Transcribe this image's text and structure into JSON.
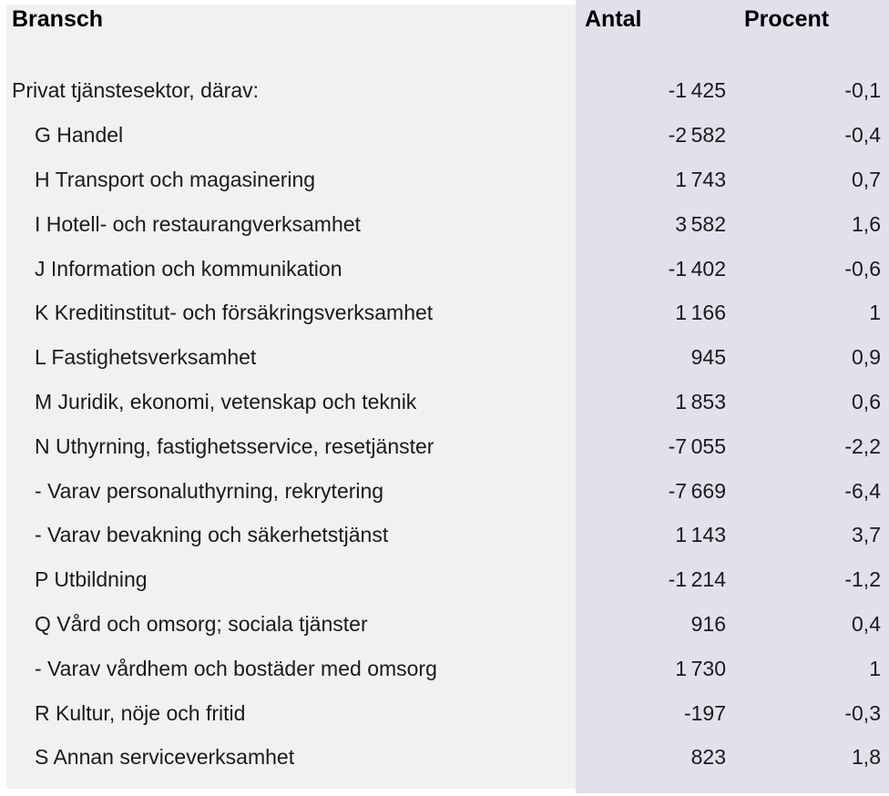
{
  "colors": {
    "bransch_column_bg": "#f1f1f2",
    "values_column_bg": "#e2e0eb",
    "text": "#1a1a1a",
    "page_bg": "#ffffff"
  },
  "table": {
    "columns": {
      "bransch": "Bransch",
      "antal": "Antal",
      "procent": "Procent"
    },
    "rows": [
      {
        "bransch": "Privat tjänstesektor, därav:",
        "antal": "-1 425",
        "procent": "-0,1"
      },
      {
        "bransch": "G Handel",
        "antal": "-2 582",
        "procent": "-0,4"
      },
      {
        "bransch": "H Transport och magasinering",
        "antal": "1 743",
        "procent": "0,7"
      },
      {
        "bransch": "I Hotell- och restaurangverksamhet",
        "antal": "3 582",
        "procent": "1,6"
      },
      {
        "bransch": "J Information och kommunikation",
        "antal": "-1 402",
        "procent": "-0,6"
      },
      {
        "bransch": "K Kreditinstitut- och försäkringsverksamhet",
        "antal": "1 166",
        "procent": "1"
      },
      {
        "bransch": "L Fastighetsverksamhet",
        "antal": "945",
        "procent": "0,9"
      },
      {
        "bransch": "M Juridik, ekonomi, vetenskap och teknik",
        "antal": "1 853",
        "procent": "0,6"
      },
      {
        "bransch": "N Uthyrning, fastighetsservice, resetjänster",
        "antal": "-7 055",
        "procent": "-2,2"
      },
      {
        "bransch": "- Varav personaluthyrning, rekrytering",
        "antal": "-7 669",
        "procent": "-6,4"
      },
      {
        "bransch": "- Varav bevakning och säkerhetstjänst",
        "antal": "1 143",
        "procent": "3,7"
      },
      {
        "bransch": "P Utbildning",
        "antal": "-1 214",
        "procent": "-1,2"
      },
      {
        "bransch": "Q Vård och omsorg; sociala tjänster",
        "antal": "916",
        "procent": "0,4"
      },
      {
        "bransch": "- Varav vårdhem och bostäder med omsorg",
        "antal": "1 730",
        "procent": "1"
      },
      {
        "bransch": "R Kultur, nöje och fritid",
        "antal": "-197",
        "procent": "-0,3"
      },
      {
        "bransch": "S Annan serviceverksamhet",
        "antal": "823",
        "procent": "1,8"
      }
    ]
  },
  "chart_data": {
    "type": "table",
    "title": "",
    "columns": [
      "Bransch",
      "Antal",
      "Procent"
    ],
    "rows": [
      [
        "Privat tjänstesektor, därav:",
        -1425,
        -0.1
      ],
      [
        "G Handel",
        -2582,
        -0.4
      ],
      [
        "H Transport och magasinering",
        1743,
        0.7
      ],
      [
        "I Hotell- och restaurangverksamhet",
        3582,
        1.6
      ],
      [
        "J Information och kommunikation",
        -1402,
        -0.6
      ],
      [
        "K Kreditinstitut- och försäkringsverksamhet",
        1166,
        1
      ],
      [
        "L Fastighetsverksamhet",
        945,
        0.9
      ],
      [
        "M Juridik, ekonomi, vetenskap och teknik",
        1853,
        0.6
      ],
      [
        "N Uthyrning, fastighetsservice, resetjänster",
        -7055,
        -2.2
      ],
      [
        "- Varav personaluthyrning, rekrytering",
        -7669,
        -6.4
      ],
      [
        "- Varav bevakning och säkerhetstjänst",
        1143,
        3.7
      ],
      [
        "P Utbildning",
        -1214,
        -1.2
      ],
      [
        "Q Vård och omsorg; sociala tjänster",
        916,
        0.4
      ],
      [
        "- Varav vårdhem och bostäder med omsorg",
        1730,
        1
      ],
      [
        "R Kultur, nöje och fritid",
        -197,
        -0.3
      ],
      [
        "S Annan serviceverksamhet",
        823,
        1.8
      ]
    ]
  }
}
